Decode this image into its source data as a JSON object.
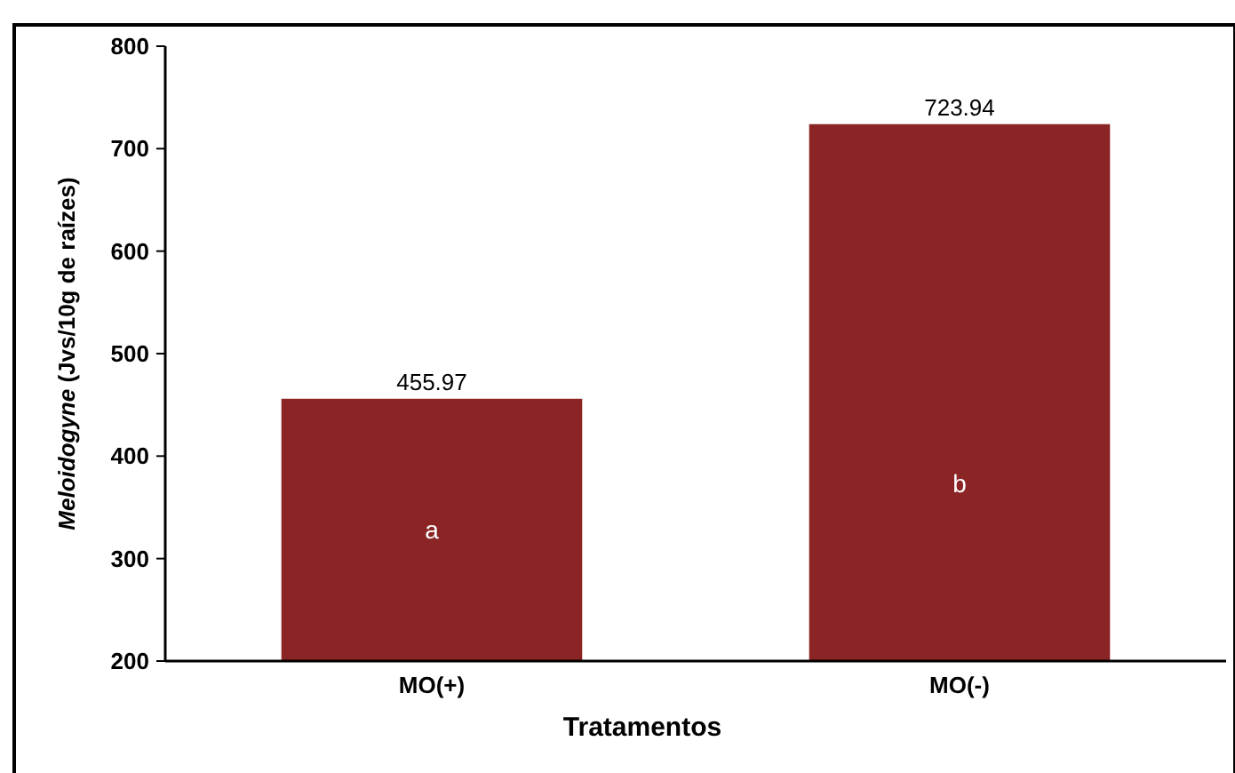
{
  "chart_data": {
    "type": "bar",
    "xlabel": "Tratamentos",
    "ylabel": "Meloidogyne (Jvs/10g de raízes)",
    "categories": [
      "MO(+)",
      "MO(-)"
    ],
    "values": [
      455.97,
      723.94
    ],
    "color": "#8b2525",
    "ylim": [
      200,
      800
    ],
    "yticks": [
      200,
      300,
      400,
      500,
      600,
      700,
      800
    ],
    "grid": false,
    "data_labels": true,
    "annotations": [
      "a",
      "b"
    ]
  }
}
